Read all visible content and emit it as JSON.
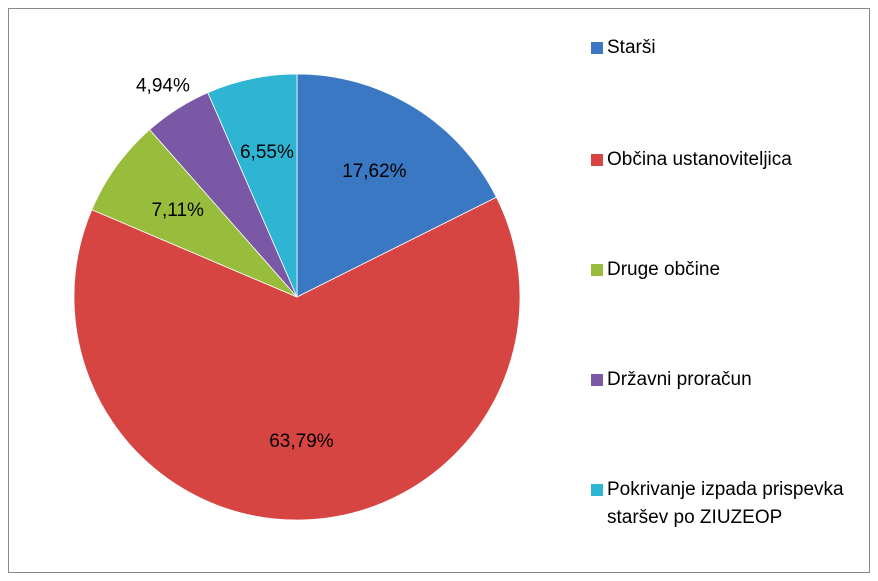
{
  "chart_data": {
    "type": "pie",
    "categories": [
      "Starši",
      "Občina ustanoviteljica",
      "Druge občine",
      "Državni proračun",
      "Pokrivanje izpada prispevka staršev po ZIUZEOP"
    ],
    "values": [
      17.62,
      63.79,
      7.11,
      4.94,
      6.55
    ],
    "value_labels": [
      "17,62%",
      "63,79%",
      "7,11%",
      "4,94%",
      "6,55%"
    ],
    "colors": [
      "#3b78c4",
      "#d64541",
      "#98bd3c",
      "#7b58a6",
      "#2fb5d4"
    ],
    "legend": "right"
  }
}
